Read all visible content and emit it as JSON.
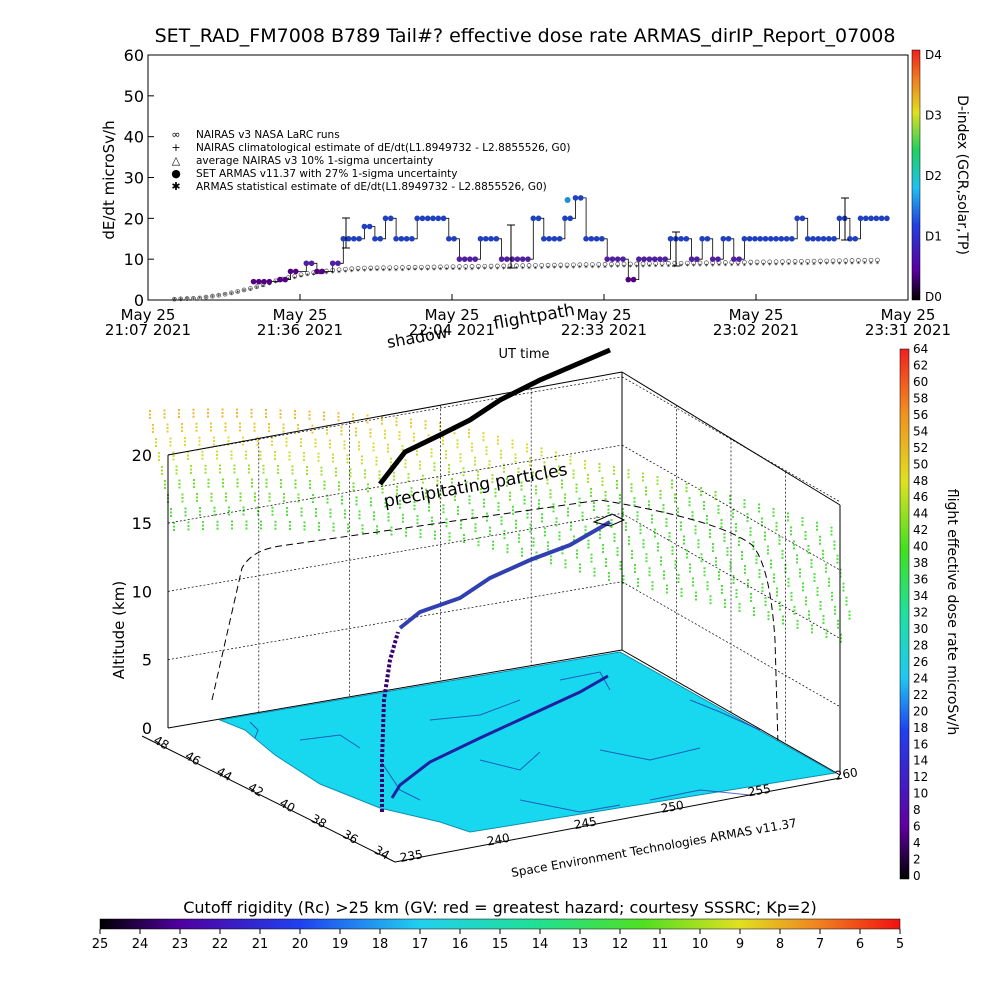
{
  "title": "SET_RAD_FM7008  B789 Tail#? effective dose rate ARMAS_dirIP_Report_07008",
  "chart_data": [
    {
      "type": "scatter",
      "ylabel": "dE/dt microSv/h",
      "xlabel": "UT time",
      "ylim": [
        0,
        60
      ],
      "yticks": [
        "0",
        "10",
        "20",
        "30",
        "40",
        "50",
        "60"
      ],
      "xlim": [
        "21:07",
        "23:31"
      ],
      "xticks": [
        {
          "date": "May 25",
          "time": "21:07  2021"
        },
        {
          "date": "May 25",
          "time": "21:36  2021"
        },
        {
          "date": "May 25",
          "time": "22:04  2021"
        },
        {
          "date": "May 25",
          "time": "22:33  2021"
        },
        {
          "date": "May 25",
          "time": "23:02  2021"
        },
        {
          "date": "May 25",
          "time": "23:31  2021"
        }
      ],
      "legend": [
        "NAIRAS v3 NASA LaRC runs",
        "NAIRAS climatological estimate of dE/dt(L1.8949732 - L2.8855526, G0)",
        "average NAIRAS v3 10% 1-sigma uncertainty",
        "SET ARMAS v11.37 with 27% 1-sigma uncertainty",
        "ARMAS statistical estimate of dE/dt(L1.8949732 - L2.8855526, G0)"
      ],
      "legend_placement": "upper-left",
      "colorbar": {
        "label": "D-index (GCR,solar,TP)",
        "ticks": [
          "D0",
          "D1",
          "D2",
          "D3",
          "D4"
        ]
      },
      "series": [
        {
          "name": "SET ARMAS v11.37 with 27% 1-sigma uncertainty",
          "x_minutes": [
            20,
            22,
            25,
            27,
            30,
            32,
            35,
            37,
            39,
            41,
            43,
            45,
            47,
            49,
            51,
            53,
            55,
            57,
            59,
            61,
            63,
            65,
            67,
            69,
            71,
            73,
            75,
            77,
            79,
            81,
            83,
            85,
            87,
            89,
            91,
            93,
            95,
            97,
            99,
            101,
            103,
            105,
            107,
            109,
            111,
            113,
            115,
            117,
            119,
            121,
            123,
            125,
            127,
            129,
            131,
            133,
            135,
            137,
            139
          ],
          "values": [
            4.5,
            4.5,
            5,
            7,
            9,
            7,
            9,
            15,
            15,
            18,
            15,
            20,
            15,
            15,
            20,
            20,
            20,
            15,
            10,
            10,
            15,
            15,
            10,
            10,
            10,
            20,
            15,
            15,
            20,
            25,
            15,
            15,
            10,
            10,
            5,
            10,
            10,
            10,
            15,
            15,
            10,
            15,
            10,
            15,
            10,
            15,
            15,
            15,
            15,
            15,
            20,
            15,
            15,
            15,
            20,
            15,
            20,
            20,
            20
          ]
        },
        {
          "name": "NAIRAS v3 NASA LaRC runs",
          "x_minutes": [
            5,
            10,
            15,
            20,
            25,
            30,
            35,
            40,
            50,
            60,
            70,
            80,
            90,
            100,
            110,
            120,
            130,
            139
          ],
          "values": [
            0.2,
            0.5,
            1.5,
            3,
            5,
            6.5,
            7.3,
            7.8,
            8.0,
            8.2,
            8.4,
            8.6,
            8.8,
            9.0,
            9.2,
            9.4,
            9.6,
            9.8
          ]
        }
      ],
      "error_bar_value": 24.5
    },
    {
      "type": "scatter",
      "subtitle": "flightpath",
      "shadow_label": "shadow",
      "particles_label": "precipitating particles",
      "zlabel": "Altitude (km)",
      "zticks": [
        "0",
        "5",
        "10",
        "15",
        "20"
      ],
      "lat_ticks": [
        "34",
        "36",
        "38",
        "40",
        "42",
        "44",
        "46",
        "48"
      ],
      "lon_ticks": [
        "235",
        "240",
        "245",
        "250",
        "255",
        "260"
      ],
      "credit": "Space Environment Technologies ARMAS v11.37",
      "colorbar": {
        "label": "flight effective dose rate microSv/h",
        "ticks": [
          "0",
          "2",
          "4",
          "6",
          "8",
          "10",
          "12",
          "14",
          "16",
          "18",
          "20",
          "22",
          "24",
          "26",
          "28",
          "30",
          "32",
          "34",
          "36",
          "38",
          "40",
          "42",
          "44",
          "46",
          "48",
          "50",
          "52",
          "54",
          "56",
          "58",
          "60",
          "62",
          "64"
        ]
      }
    }
  ],
  "bottom_colorbar": {
    "label": "Cutoff rigidity (Rc) >25 km (GV: red = greatest hazard; courtesy SSSRC; Kp=2)",
    "ticks": [
      "25",
      "24",
      "23",
      "22",
      "21",
      "20",
      "19",
      "18",
      "17",
      "16",
      "15",
      "14",
      "13",
      "12",
      "11",
      "10",
      "9",
      "8",
      "7",
      "6",
      "5"
    ]
  },
  "colors": {
    "armas": "#2040c0",
    "nairas": "#444444",
    "ground": "#18d8f0"
  }
}
